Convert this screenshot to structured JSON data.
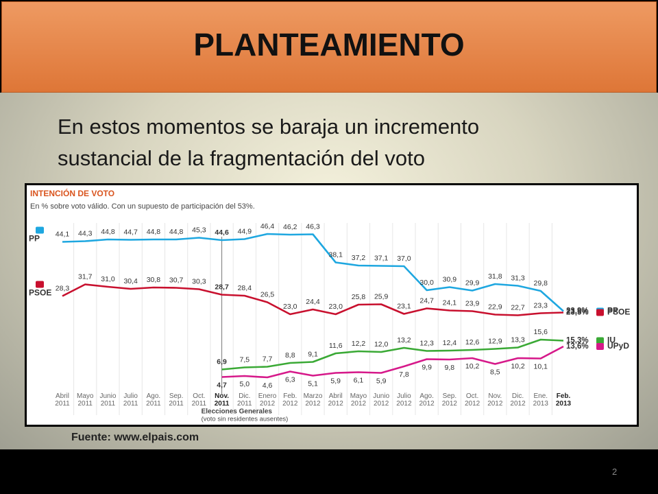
{
  "slide": {
    "title": "PLANTEAMIENTO",
    "text": [
      "En estos momentos se baraja un incremento",
      "sustancial de la fragmentación del voto"
    ],
    "source": "Fuente: www.elpais.com",
    "page_number": "2"
  },
  "chart_data": {
    "type": "line",
    "title": "INTENCIÓN DE VOTO",
    "subtitle": "En % sobre voto válido. Con un supuesto de participación del 53%.",
    "categories": [
      "Abril 2011",
      "Mayo 2011",
      "Junio 2011",
      "Julio 2011",
      "Ago. 2011",
      "Sep. 2011",
      "Oct. 2011",
      "Nov. 2011",
      "Dic. 2011",
      "Enero 2012",
      "Feb. 2012",
      "Marzo 2012",
      "Abril 2012",
      "Mayo 2012",
      "Junio 2012",
      "Julio 2012",
      "Ago. 2012",
      "Sep. 2012",
      "Oct. 2012",
      "Nov. 2012",
      "Dic. 2012",
      "Ene. 2013",
      "Feb. 2013"
    ],
    "ylim": [
      0,
      50
    ],
    "annotation": {
      "text": [
        "Elecciones Generales",
        "(voto sin residentes ausentes)"
      ],
      "category": "Nov. 2011"
    },
    "series": [
      {
        "name": "PP",
        "color": "#1ea7e0",
        "values": [
          44.1,
          44.3,
          44.8,
          44.7,
          44.8,
          44.8,
          45.3,
          44.6,
          44.9,
          46.4,
          46.2,
          46.3,
          38.1,
          37.2,
          37.1,
          37.0,
          30.0,
          30.9,
          29.9,
          31.8,
          31.3,
          29.8,
          23.9
        ],
        "value_labels": [
          "44,1",
          "44,3",
          "44,8",
          "44,7",
          "44,8",
          "44,8",
          "45,3",
          "44,6",
          "44,9",
          "46,4",
          "46,2",
          "46,3",
          "38,1",
          "37,2",
          "37,1",
          "37,0",
          "30,0",
          "30,9",
          "29,9",
          "31,8",
          "31,3",
          "29,8",
          "23,9%"
        ]
      },
      {
        "name": "PSOE",
        "color": "#c8102e",
        "values": [
          28.3,
          31.7,
          31.0,
          30.4,
          30.8,
          30.7,
          30.3,
          28.7,
          28.4,
          26.5,
          23.0,
          24.4,
          23.0,
          25.8,
          25.9,
          23.1,
          24.7,
          24.1,
          23.9,
          22.9,
          22.7,
          23.3,
          23.5
        ],
        "value_labels": [
          "28,3",
          "31,7",
          "31,0",
          "30,4",
          "30,8",
          "30,7",
          "30,3",
          "28,7",
          "28,4",
          "26,5",
          "23,0",
          "24,4",
          "23,0",
          "25,8",
          "25,9",
          "23,1",
          "24,7",
          "24,1",
          "23,9",
          "22,9",
          "22,7",
          "23,3",
          "23,5%"
        ]
      },
      {
        "name": "IU",
        "color": "#3aa935",
        "values": [
          null,
          null,
          null,
          null,
          null,
          null,
          null,
          6.9,
          7.5,
          7.7,
          8.8,
          9.1,
          11.6,
          12.2,
          12.0,
          13.2,
          12.3,
          12.4,
          12.6,
          12.9,
          13.3,
          15.6,
          15.3
        ],
        "value_labels": [
          null,
          null,
          null,
          null,
          null,
          null,
          null,
          "6,9",
          "7,5",
          "7,7",
          "8,8",
          "9,1",
          "11,6",
          "12,2",
          "12,0",
          "13,2",
          "12,3",
          "12,4",
          "12,6",
          "12,9",
          "13,3",
          "15,6",
          "15,3%"
        ]
      },
      {
        "name": "UPyD",
        "color": "#d6198a",
        "values": [
          null,
          null,
          null,
          null,
          null,
          null,
          null,
          4.7,
          5.0,
          4.6,
          6.3,
          5.1,
          5.9,
          6.1,
          5.9,
          7.8,
          9.9,
          9.8,
          10.2,
          8.5,
          10.2,
          10.1,
          13.6
        ],
        "value_labels": [
          null,
          null,
          null,
          null,
          null,
          null,
          null,
          "4,7",
          "5,0",
          "4,6",
          "6,3",
          "5,1",
          "5,9",
          "6,1",
          "5,9",
          "7,8",
          "9,9",
          "9,8",
          "10,2",
          "8,5",
          "10,2",
          "10,1",
          "13,6%"
        ]
      }
    ]
  }
}
